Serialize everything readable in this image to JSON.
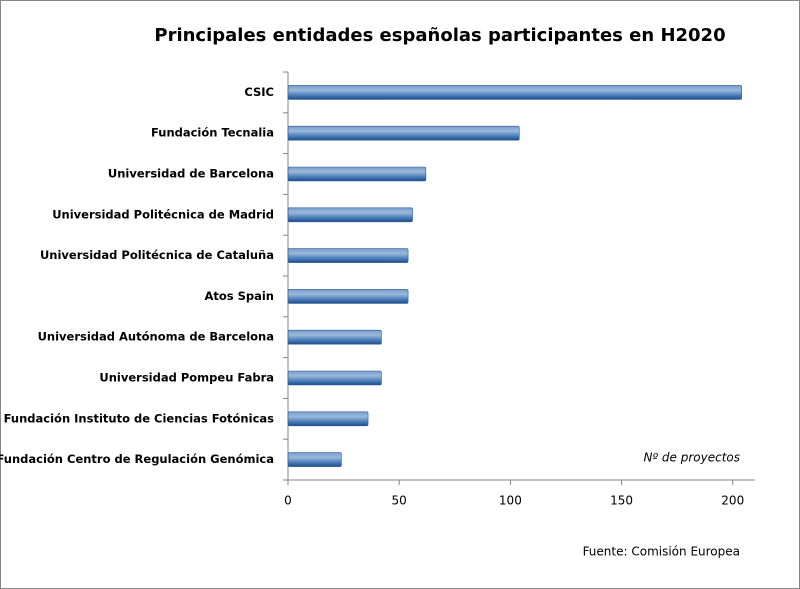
{
  "chart_data": {
    "type": "bar",
    "orientation": "horizontal",
    "title": "Principales entidades españolas participantes en H2020",
    "categories": [
      "CSIC",
      "Fundación Tecnalia",
      "Universidad de Barcelona",
      "Universidad Politécnica de Madrid",
      "Universidad Politécnica de Cataluña",
      "Atos Spain",
      "Universidad Autónoma de Barcelona",
      "Universidad Pompeu Fabra",
      "Fundación Instituto de Ciencias Fotónicas",
      "Fundación Centro de Regulación Genómica"
    ],
    "values": [
      204,
      104,
      62,
      56,
      54,
      54,
      42,
      42,
      36,
      24
    ],
    "color": "#4a7ebb",
    "xlim": [
      0,
      210
    ],
    "xticks": [
      0,
      50,
      100,
      150,
      200
    ],
    "annotations": [
      "Nº de proyectos",
      "Fuente: Comisión Europea"
    ]
  }
}
